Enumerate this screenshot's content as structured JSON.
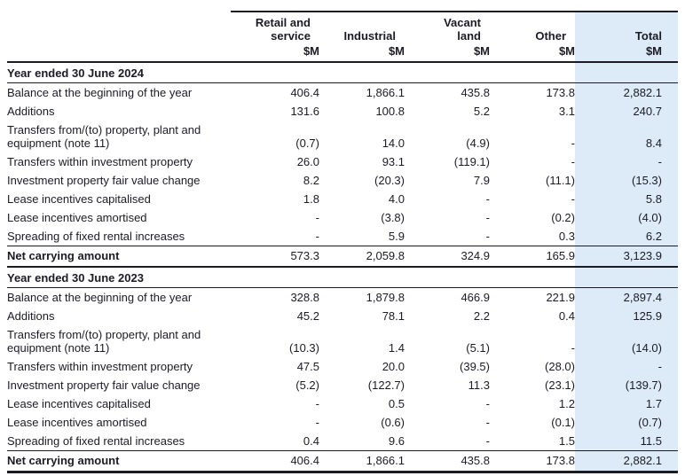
{
  "table": {
    "column_headers": [
      {
        "lines": [
          "Retail and",
          "service"
        ]
      },
      {
        "lines": [
          "Industrial"
        ]
      },
      {
        "lines": [
          "Vacant",
          "land"
        ]
      },
      {
        "lines": [
          "Other"
        ]
      },
      {
        "lines": [
          "Total"
        ]
      }
    ],
    "unit_label": "$M",
    "sections": [
      {
        "header": "Year ended 30 June 2024",
        "rows": [
          {
            "label": "Balance at the beginning of the year",
            "values": [
              "406.4",
              "1,866.1",
              "435.8",
              "173.8",
              "2,882.1"
            ]
          },
          {
            "label": "Additions",
            "values": [
              "131.6",
              "100.8",
              "5.2",
              "3.1",
              "240.7"
            ]
          },
          {
            "label": "Transfers from/(to) property, plant and equipment (note 11)",
            "values": [
              "(0.7)",
              "14.0",
              "(4.9)",
              "-",
              "8.4"
            ]
          },
          {
            "label": "Transfers within investment property",
            "values": [
              "26.0",
              "93.1",
              "(119.1)",
              "-",
              "-"
            ]
          },
          {
            "label": "Investment property fair value change",
            "values": [
              "8.2",
              "(20.3)",
              "7.9",
              "(11.1)",
              "(15.3)"
            ]
          },
          {
            "label": "Lease incentives capitalised",
            "values": [
              "1.8",
              "4.0",
              "-",
              "-",
              "5.8"
            ]
          },
          {
            "label": "Lease incentives amortised",
            "values": [
              "-",
              "(3.8)",
              "-",
              "(0.2)",
              "(4.0)"
            ]
          },
          {
            "label": "Spreading of fixed rental increases",
            "values": [
              "-",
              "5.9",
              "-",
              "0.3",
              "6.2"
            ]
          }
        ],
        "net_row": {
          "label": "Net carrying amount",
          "values": [
            "573.3",
            "2,059.8",
            "324.9",
            "165.9",
            "3,123.9"
          ]
        }
      },
      {
        "header": "Year ended 30 June 2023",
        "rows": [
          {
            "label": "Balance at the beginning of the year",
            "values": [
              "328.8",
              "1,879.8",
              "466.9",
              "221.9",
              "2,897.4"
            ]
          },
          {
            "label": "Additions",
            "values": [
              "45.2",
              "78.1",
              "2.2",
              "0.4",
              "125.9"
            ]
          },
          {
            "label": "Transfers from/(to) property, plant and equipment (note 11)",
            "values": [
              "(10.3)",
              "1.4",
              "(5.1)",
              "-",
              "(14.0)"
            ]
          },
          {
            "label": "Transfers within investment property",
            "values": [
              "47.5",
              "20.0",
              "(39.5)",
              "(28.0)",
              "-"
            ]
          },
          {
            "label": "Investment property fair value change",
            "values": [
              "(5.2)",
              "(122.7)",
              "11.3",
              "(23.1)",
              "(139.7)"
            ]
          },
          {
            "label": "Lease incentives capitalised",
            "values": [
              "-",
              "0.5",
              "-",
              "1.2",
              "1.7"
            ]
          },
          {
            "label": "Lease incentives amortised",
            "values": [
              "-",
              "(0.6)",
              "-",
              "(0.1)",
              "(0.7)"
            ]
          },
          {
            "label": "Spreading of fixed rental increases",
            "values": [
              "0.4",
              "9.6",
              "-",
              "1.5",
              "11.5"
            ]
          }
        ],
        "net_row": {
          "label": "Net carrying amount",
          "values": [
            "406.4",
            "1,866.1",
            "435.8",
            "173.8",
            "2,882.1"
          ]
        }
      }
    ],
    "colors": {
      "highlight_column": "#dcebf7",
      "text": "#1b1b25",
      "rule": "#1b1b25"
    }
  }
}
